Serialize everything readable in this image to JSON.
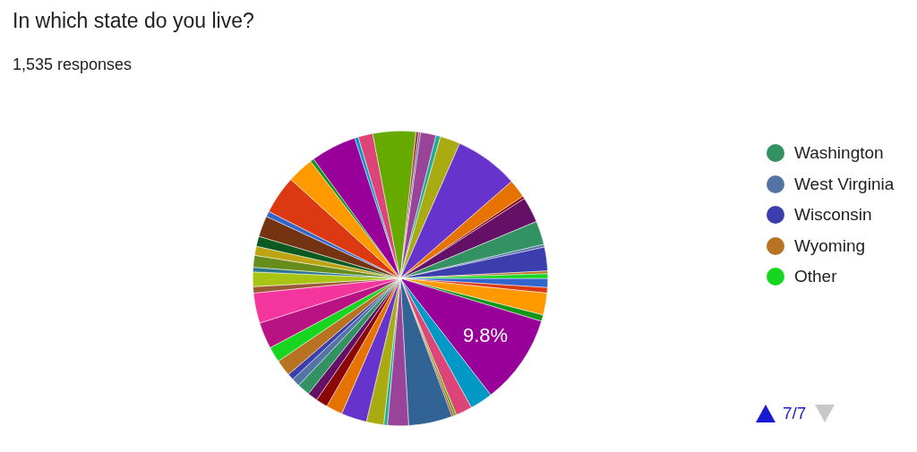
{
  "chart_data": {
    "type": "pie",
    "title": "In which state do you live?",
    "subtitle": "1,535 responses",
    "categories": [
      null,
      null,
      null,
      null,
      null,
      null,
      null,
      null,
      null,
      null,
      null,
      null,
      null,
      null,
      null,
      null,
      null,
      null,
      null,
      null,
      null,
      null,
      null,
      null,
      null,
      null,
      null,
      null,
      null,
      null,
      null,
      null,
      null,
      null,
      null,
      null,
      null,
      null,
      null,
      null,
      null,
      null,
      null,
      null,
      null,
      null,
      null,
      null,
      "Washington",
      "West Virginia",
      "Wisconsin",
      "Wyoming",
      "Other"
    ],
    "values": [
      1.0,
      0.6,
      2.4,
      0.7,
      9.8,
      2.5,
      1.8,
      0.3,
      0.2,
      4.8,
      2.3,
      0.4,
      1.9,
      2.8,
      1.8,
      1.3,
      1.1,
      1.4,
      0.9,
      0.7,
      1.8,
      1.7,
      2.9,
      3.3,
      0.7,
      1.6,
      0.5,
      1.3,
      1.0,
      1.1,
      2.3,
      0.6,
      4.2,
      2.9,
      0.4,
      5.0,
      0.4,
      1.6,
      4.7,
      0.3,
      0.2,
      1.7,
      0.5,
      2.2,
      7.0,
      2.0,
      0.3,
      2.8,
      2.6,
      0.3,
      2.6,
      0.3,
      0.5
    ],
    "colors": [
      "#3366cc",
      "#dc3912",
      "#ff9900",
      "#109618",
      "#990099",
      "#0099c6",
      "#dd4477",
      "#66aa00",
      "#b82e2e",
      "#316395",
      "#994499",
      "#22aa99",
      "#aaaa11",
      "#6633cc",
      "#e67300",
      "#8b0707",
      "#651067",
      "#329262",
      "#5574a6",
      "#3b3eac",
      "#b77322",
      "#16d620",
      "#b91383",
      "#f4359e",
      "#9c5935",
      "#a9c413",
      "#2a778d",
      "#668d1c",
      "#bea413",
      "#0c5922",
      "#743411",
      "#3366cc",
      "#dc3912",
      "#ff9900",
      "#109618",
      "#990099",
      "#0099c6",
      "#dd4477",
      "#66aa00",
      "#b82e2e",
      "#316395",
      "#994499",
      "#22aa99",
      "#aaaa11",
      "#6633cc",
      "#e67300",
      "#8b0707",
      "#651067",
      "#329262",
      "#5574a6",
      "#3b3eac",
      "#b77322",
      "#16d620"
    ],
    "value_labels": [
      null,
      null,
      null,
      null,
      "9.8%",
      null,
      null,
      null,
      null,
      null,
      null,
      null,
      null,
      null,
      null,
      null,
      null,
      null,
      null,
      null,
      null,
      null,
      null,
      null,
      null,
      null,
      null,
      null,
      null,
      null,
      null,
      null,
      null,
      null,
      null,
      null,
      null,
      null,
      null,
      null,
      null,
      null,
      null,
      null,
      null,
      null,
      null,
      null,
      null,
      null,
      null,
      null,
      null
    ],
    "legend": "right",
    "annotations": [
      "7/7"
    ]
  }
}
